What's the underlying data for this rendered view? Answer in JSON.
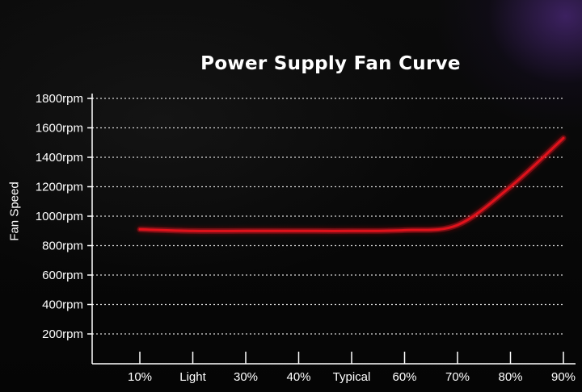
{
  "chart_data": {
    "type": "line",
    "title": "Power Supply Fan Curve",
    "ylabel": "Fan Speed",
    "xlabel": "",
    "categories": [
      "10%",
      "Light",
      "30%",
      "40%",
      "Typical",
      "60%",
      "70%",
      "80%",
      "90%"
    ],
    "y_ticks": [
      "200rpm",
      "400rpm",
      "600rpm",
      "800rpm",
      "1000rpm",
      "1200rpm",
      "1400rpm",
      "1600rpm",
      "1800rpm"
    ],
    "ylim": [
      0,
      1800
    ],
    "grid": true,
    "series": [
      {
        "color": "#e0121b",
        "values": [
          910,
          900,
          900,
          900,
          900,
          905,
          940,
          1200,
          1530
        ]
      }
    ]
  }
}
